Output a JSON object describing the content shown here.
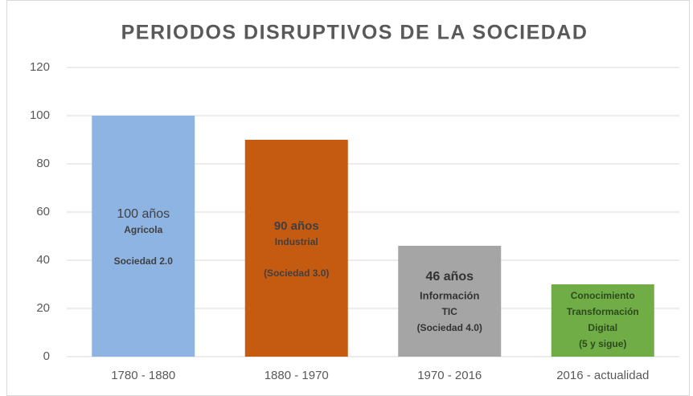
{
  "chart_data": {
    "type": "bar",
    "title": "PERIODOS DISRUPTIVOS DE LA SOCIEDAD",
    "categories": [
      "1780 - 1880",
      "1880 - 1970",
      "1970 - 2016",
      "2016 - actualidad"
    ],
    "values": [
      100,
      90,
      46,
      30
    ],
    "colors": [
      "#8db4e2",
      "#c55a11",
      "#a5a5a5",
      "#70ad47"
    ],
    "annotations": [
      [
        "100 años",
        "Agricola",
        "Sociedad 2.0"
      ],
      [
        "90 años",
        "Industrial",
        "(Sociedad 3.0)"
      ],
      [
        "46 años",
        "Información",
        "TIC",
        "(Sociedad 4.0)"
      ],
      [
        "Conocimiento",
        "Transformación",
        "Digital",
        "(5 y sigue)"
      ]
    ],
    "ylim": [
      0,
      120
    ],
    "yticks": [
      0,
      20,
      40,
      60,
      80,
      100,
      120
    ],
    "grid": true
  }
}
